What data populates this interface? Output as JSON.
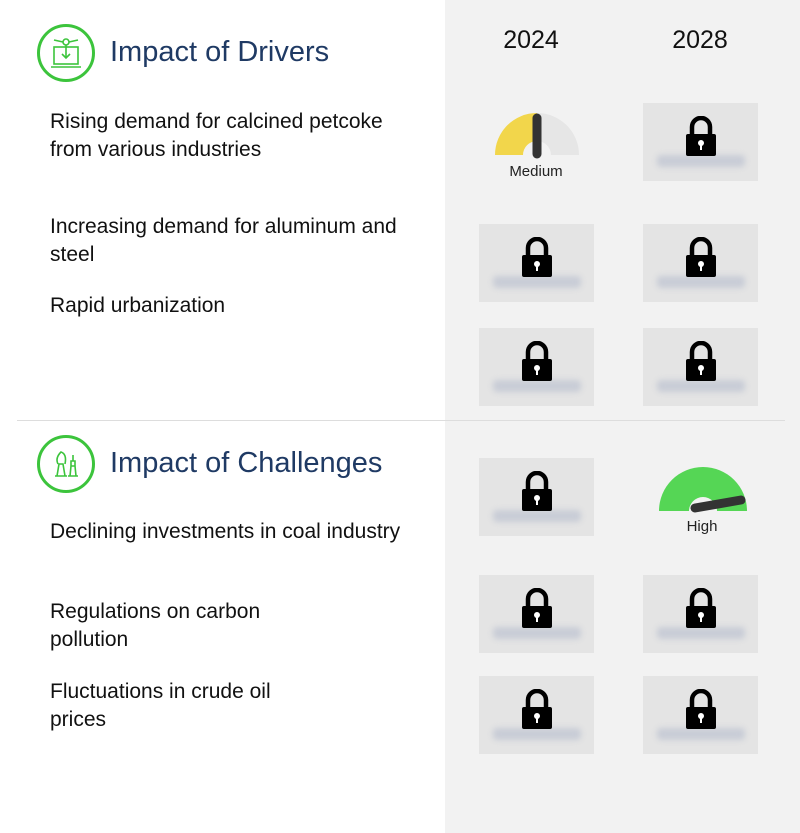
{
  "columns": [
    "2024",
    "2028"
  ],
  "drivers": {
    "title": "Impact of Drivers",
    "icon": "machine-icon",
    "items": [
      "Rising demand for calcined petcoke from various industries",
      "Increasing demand for aluminum and steel",
      "Rapid urbanization"
    ]
  },
  "challenges": {
    "title": "Impact of Challenges",
    "icon": "chess-icon",
    "items": [
      "Declining investments in coal industry",
      "Regulations on carbon pollution",
      "Fluctuations in crude oil prices"
    ]
  },
  "gauges": {
    "driver1_2024": {
      "label": "Medium",
      "level": 0.5,
      "color": "#f2d64b"
    },
    "challenge1_2028": {
      "label": "High",
      "level": 0.9,
      "color": "#55d655"
    }
  },
  "colors": {
    "accent": "#3cc43c",
    "heading": "#1f3a64",
    "panel": "#f2f2f2"
  }
}
